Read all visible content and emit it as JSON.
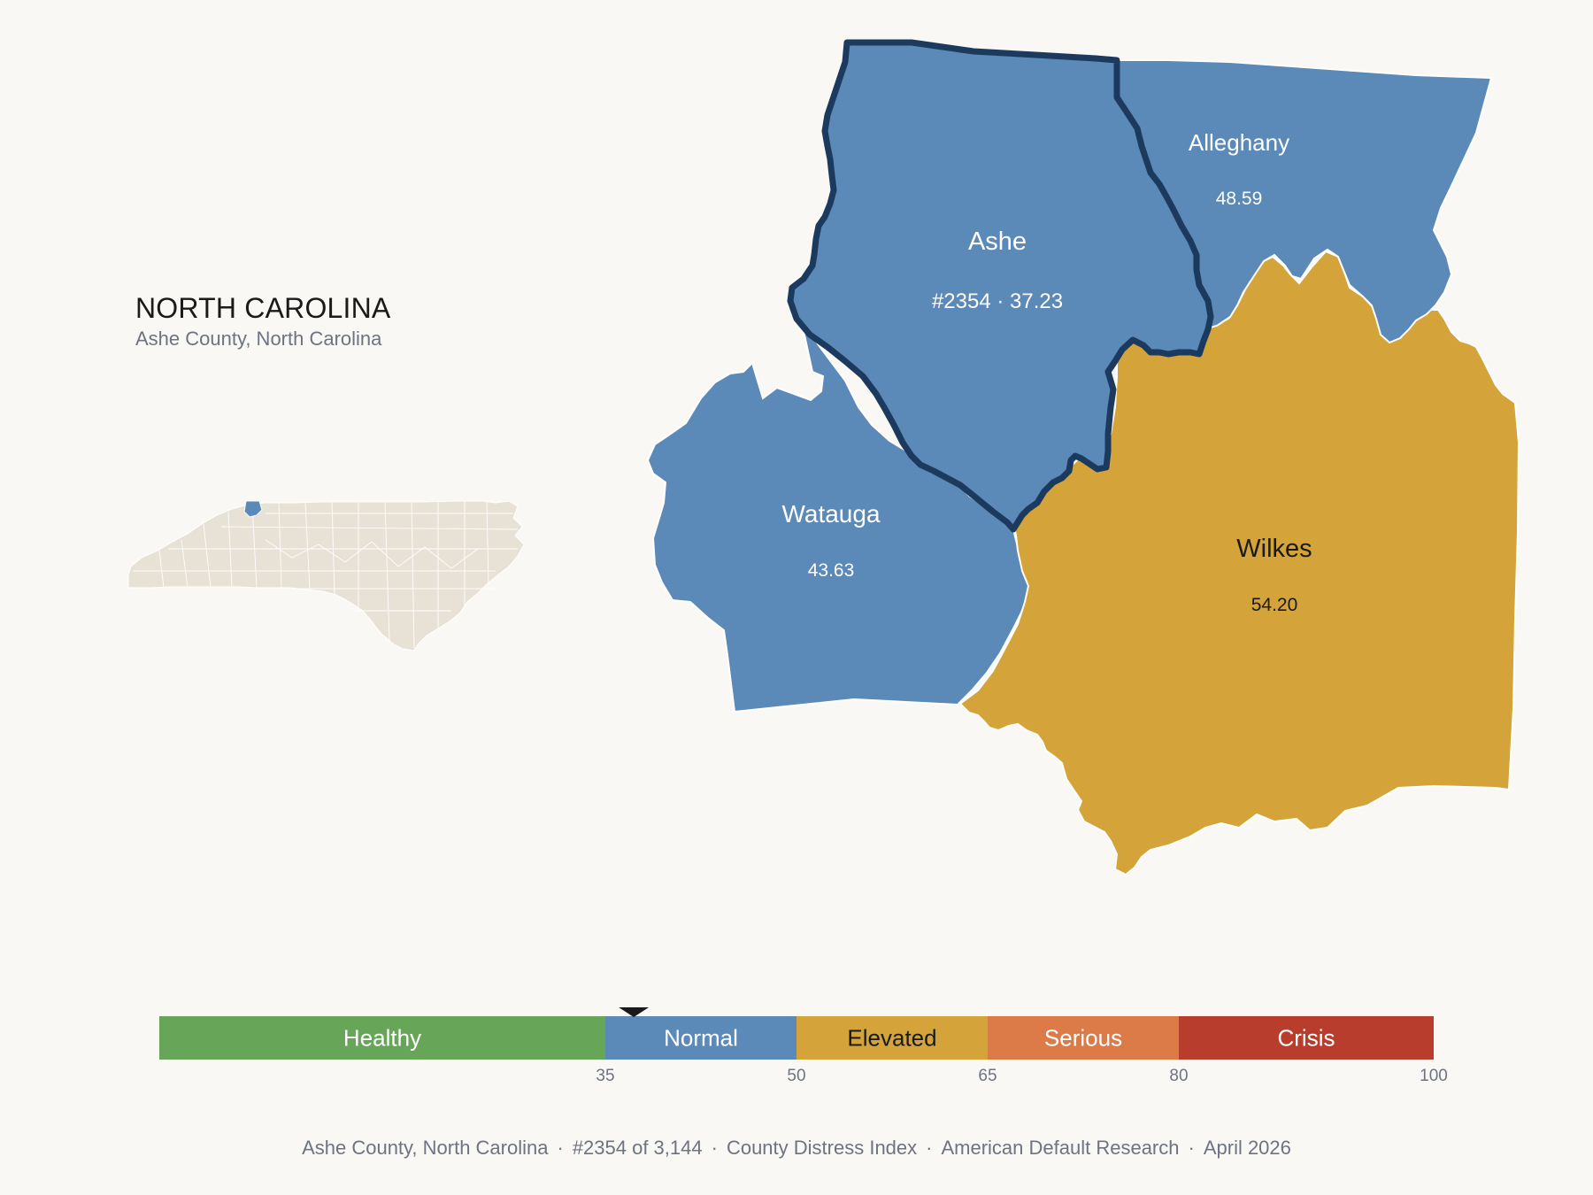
{
  "header": {
    "state": "NORTH CAROLINA",
    "subtitle": "Ashe County, North Carolina"
  },
  "counties": {
    "ashe": {
      "name": "Ashe",
      "value": "#2354 · 37.23",
      "color": "#5b89b8"
    },
    "alleghany": {
      "name": "Alleghany",
      "value": "48.59",
      "color": "#5b89b8"
    },
    "watauga": {
      "name": "Watauga",
      "value": "43.63",
      "color": "#5b89b8"
    },
    "wilkes": {
      "name": "Wilkes",
      "value": "54.20",
      "color": "#d4a43a"
    }
  },
  "highlight_color": "#1c3a5e",
  "inset": {
    "state_fill": "#e8e2d6",
    "highlight_fill": "#5b89b8"
  },
  "scale": {
    "min": 0,
    "max": 100,
    "marker_value": 37.23,
    "bands": [
      {
        "label": "Healthy",
        "from": 0,
        "to": 35,
        "color": "#67a659",
        "text_color": "#ffffff"
      },
      {
        "label": "Normal",
        "from": 35,
        "to": 50,
        "color": "#5b89b8",
        "text_color": "#ffffff"
      },
      {
        "label": "Elevated",
        "from": 50,
        "to": 65,
        "color": "#d4a43a",
        "text_color": "#1a1a1a"
      },
      {
        "label": "Serious",
        "from": 65,
        "to": 80,
        "color": "#dc7a48",
        "text_color": "#ffffff"
      },
      {
        "label": "Crisis",
        "from": 80,
        "to": 100,
        "color": "#b83d2c",
        "text_color": "#ffffff"
      }
    ],
    "ticks": [
      "35",
      "50",
      "65",
      "80",
      "100"
    ]
  },
  "footer": {
    "county": "Ashe County, North Carolina",
    "rank": "#2354 of 3,144",
    "index": "County Distress Index",
    "source": "American Default Research",
    "date": "April 2026"
  }
}
